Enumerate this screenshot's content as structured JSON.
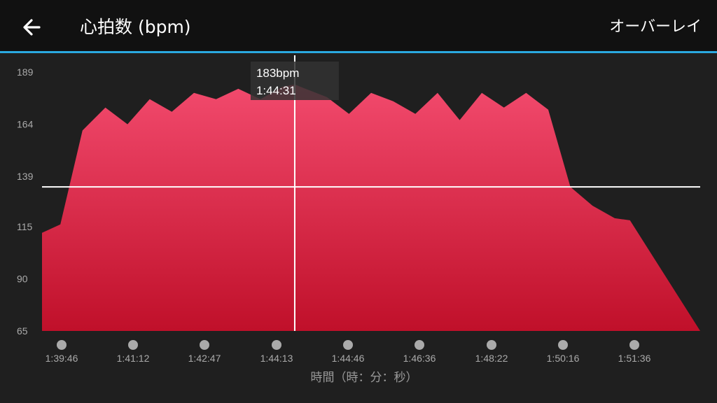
{
  "header": {
    "title": "心拍数 (bpm)",
    "overlay_label": "オーバーレイ",
    "back_icon": "arrow-left-icon"
  },
  "colors": {
    "background": "#1f1f1f",
    "header_bg": "#111111",
    "accent_line": "#2aa9e0",
    "area_top": "#f24a6d",
    "area_bottom": "#c0102a",
    "crosshair": "#ffffff"
  },
  "tooltip": {
    "value": "183bpm",
    "time": "1:44:31"
  },
  "chart_data": {
    "type": "area",
    "title": "心拍数 (bpm)",
    "xlabel": "時間（時：分：秒）",
    "ylabel": "",
    "ylim": [
      65,
      189
    ],
    "yticks": [
      189,
      164,
      139,
      115,
      90,
      65
    ],
    "xlim": [
      "1:39:00",
      "1:53:22"
    ],
    "xticks": [
      "1:39:46",
      "1:41:12",
      "1:42:47",
      "1:44:13",
      "1:44:46",
      "1:46:36",
      "1:48:22",
      "1:50:16",
      "1:51:36"
    ],
    "crosshair": {
      "x": "1:44:31",
      "y": 134
    },
    "series": [
      {
        "values": [
          {
            "x": "1:39:00",
            "y": 112
          },
          {
            "x": "1:39:24",
            "y": 116
          },
          {
            "x": "1:39:53",
            "y": 161
          },
          {
            "x": "1:40:23",
            "y": 172
          },
          {
            "x": "1:40:52",
            "y": 164
          },
          {
            "x": "1:41:21",
            "y": 176
          },
          {
            "x": "1:41:50",
            "y": 170
          },
          {
            "x": "1:42:19",
            "y": 179
          },
          {
            "x": "1:42:48",
            "y": 176
          },
          {
            "x": "1:43:17",
            "y": 181
          },
          {
            "x": "1:43:46",
            "y": 176
          },
          {
            "x": "1:44:15",
            "y": 182
          },
          {
            "x": "1:44:31",
            "y": 183
          },
          {
            "x": "1:45:13",
            "y": 177
          },
          {
            "x": "1:45:42",
            "y": 169
          },
          {
            "x": "1:46:11",
            "y": 179
          },
          {
            "x": "1:46:40",
            "y": 175
          },
          {
            "x": "1:47:09",
            "y": 169
          },
          {
            "x": "1:47:38",
            "y": 179
          },
          {
            "x": "1:48:07",
            "y": 166
          },
          {
            "x": "1:48:36",
            "y": 179
          },
          {
            "x": "1:49:05",
            "y": 172
          },
          {
            "x": "1:49:34",
            "y": 179
          },
          {
            "x": "1:50:03",
            "y": 171
          },
          {
            "x": "1:50:32",
            "y": 134
          },
          {
            "x": "1:51:01",
            "y": 125
          },
          {
            "x": "1:51:30",
            "y": 119
          },
          {
            "x": "1:51:50",
            "y": 118
          }
        ]
      }
    ]
  }
}
